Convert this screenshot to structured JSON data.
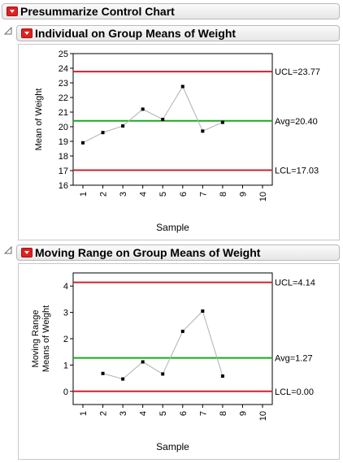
{
  "outline": {
    "top_title": "Presummarize Control Chart",
    "section1_title": "Individual on Group Means of Weight",
    "section2_title": "Moving Range on Group Means of Weight"
  },
  "chart_data": [
    {
      "type": "line",
      "title": "Individual on Group Means of Weight",
      "xlabel": "Sample",
      "ylabel": "Mean of Weight",
      "x": [
        1,
        2,
        3,
        4,
        5,
        6,
        7,
        8
      ],
      "values": [
        18.9,
        19.6,
        20.05,
        21.2,
        20.5,
        22.75,
        19.7,
        20.3
      ],
      "xlim": [
        1,
        10
      ],
      "xticks": [
        "1",
        "2",
        "3",
        "4",
        "5",
        "6",
        "7",
        "8",
        "9",
        "10"
      ],
      "ylim": [
        16,
        25
      ],
      "yticks": [
        "16",
        "17",
        "18",
        "19",
        "20",
        "21",
        "22",
        "23",
        "24",
        "25"
      ],
      "limits": {
        "ucl": {
          "value": 23.77,
          "label": "UCL=23.77",
          "color": "#d0202e"
        },
        "avg": {
          "value": 20.4,
          "label": "Avg=20.40",
          "color": "#1aaa1a"
        },
        "lcl": {
          "value": 17.03,
          "label": "LCL=17.03",
          "color": "#d0202e"
        }
      },
      "line_color": "#b0b0b0",
      "marker_color": "#000000"
    },
    {
      "type": "line",
      "title": "Moving Range on Group Means of Weight",
      "xlabel": "Sample",
      "ylabel": "Moving Range",
      "ylabel2": "Means of Weight",
      "x": [
        2,
        3,
        4,
        5,
        6,
        7,
        8
      ],
      "values": [
        0.68,
        0.47,
        1.12,
        0.66,
        2.28,
        3.05,
        0.58
      ],
      "xlim": [
        1,
        10
      ],
      "xticks": [
        "1",
        "2",
        "3",
        "4",
        "5",
        "6",
        "7",
        "8",
        "9",
        "10"
      ],
      "ylim": [
        -0.5,
        4.5
      ],
      "yticks": [
        "0",
        "1",
        "2",
        "3",
        "4"
      ],
      "limits": {
        "ucl": {
          "value": 4.14,
          "label": "UCL=4.14",
          "color": "#d0202e"
        },
        "avg": {
          "value": 1.27,
          "label": "Avg=1.27",
          "color": "#1aaa1a"
        },
        "lcl": {
          "value": 0.0,
          "label": "LCL=0.00",
          "color": "#d0202e"
        }
      },
      "line_color": "#b0b0b0",
      "marker_color": "#000000"
    }
  ]
}
